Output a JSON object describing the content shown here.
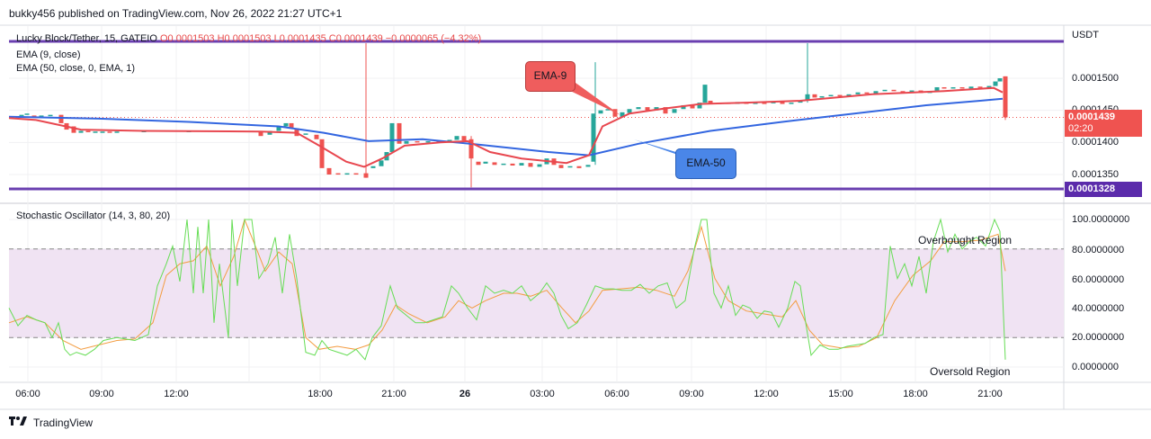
{
  "header": {
    "published": "bukky456 published on TradingView.com, Nov 26, 2022 21:27 UTC+1",
    "symbol_line": "Lucky Block/Tether, 15, GATEIO",
    "ohlc": "O0.0001503  H0.0001503  L0.0001435  C0.0001439  −0.0000065 (−4.32%)",
    "indicator_1": "EMA (9, close)",
    "indicator_2": "EMA (50, close, 0, EMA, 1)",
    "oscillator": "Stochastic Oscillator (14, 3, 80, 20)"
  },
  "axis": {
    "currency": "USDT",
    "price_ticks": [
      "0.0001500",
      "0.0001450",
      "0.0001400",
      "0.0001350"
    ],
    "current_price": "0.0001439",
    "countdown": "02:20",
    "support_price": "0.0001328",
    "osc_ticks": [
      "100.0000000",
      "80.0000000",
      "60.0000000",
      "40.0000000",
      "20.0000000",
      "0.0000000"
    ],
    "time_ticks": [
      "06:00",
      "09:00",
      "12:00",
      "18:00",
      "21:00",
      "26",
      "03:00",
      "06:00",
      "09:00",
      "12:00",
      "15:00",
      "18:00",
      "21:00"
    ]
  },
  "annotations": {
    "ema9": "EMA-9",
    "ema50": "EMA-50",
    "overbought": "Overbought Region",
    "oversold": "Oversold Region"
  },
  "footer": {
    "brand": "TradingView",
    "logo": "tradingview-logo-icon"
  },
  "colors": {
    "ema9": "#e8474f",
    "ema50": "#3366e0",
    "bull": "#26a69a",
    "bear": "#ef5350",
    "level_line": "#6a3fb0",
    "k_line": "#66dd55",
    "d_line": "#f39c40",
    "band": "#f0e3f3",
    "ema9_callout": "#ef5d5d",
    "ema50_callout": "#4a86e8"
  },
  "chart_data": {
    "type": "candlestick",
    "price_range": [
      0.00013,
      0.000154
    ],
    "resistance": 0.0001553,
    "support": 0.0001328,
    "current": 0.0001439,
    "ema9": [
      [
        0,
        0.0001438
      ],
      [
        30,
        0.0001435
      ],
      [
        80,
        0.000142
      ],
      [
        150,
        0.0001418
      ],
      [
        280,
        0.0001417
      ],
      [
        320,
        0.0001415
      ],
      [
        345,
        0.0001395
      ],
      [
        375,
        0.000137
      ],
      [
        395,
        0.0001362
      ],
      [
        415,
        0.0001375
      ],
      [
        440,
        0.0001395
      ],
      [
        480,
        0.00014
      ],
      [
        510,
        0.0001402
      ],
      [
        535,
        0.0001385
      ],
      [
        570,
        0.0001375
      ],
      [
        620,
        0.0001368
      ],
      [
        645,
        0.000138
      ],
      [
        660,
        0.0001425
      ],
      [
        690,
        0.0001445
      ],
      [
        730,
        0.0001453
      ],
      [
        770,
        0.000146
      ],
      [
        820,
        0.0001462
      ],
      [
        880,
        0.0001465
      ],
      [
        960,
        0.0001475
      ],
      [
        1040,
        0.000148
      ],
      [
        1095,
        0.0001485
      ],
      [
        1105,
        0.0001478
      ]
    ],
    "ema50": [
      [
        0,
        0.000144
      ],
      [
        100,
        0.0001437
      ],
      [
        200,
        0.0001432
      ],
      [
        300,
        0.0001425
      ],
      [
        350,
        0.0001415
      ],
      [
        400,
        0.0001402
      ],
      [
        460,
        0.0001405
      ],
      [
        520,
        0.0001397
      ],
      [
        600,
        0.0001385
      ],
      [
        645,
        0.000138
      ],
      [
        700,
        0.0001398
      ],
      [
        780,
        0.0001418
      ],
      [
        860,
        0.0001432
      ],
      [
        940,
        0.0001445
      ],
      [
        1020,
        0.0001458
      ],
      [
        1080,
        0.0001465
      ],
      [
        1105,
        0.0001468
      ]
    ],
    "candles": [
      [
        14,
        0.0001442,
        0.0001443
      ],
      [
        20,
        0.0001443,
        0.0001445
      ],
      [
        28,
        0.0001442,
        0.000144
      ],
      [
        36,
        0.000144,
        0.0001442
      ],
      [
        46,
        0.0001442,
        0.0001443
      ],
      [
        58,
        0.0001443,
        0.000143
      ],
      [
        64,
        0.000143,
        0.000142
      ],
      [
        72,
        0.0001425,
        0.0001415
      ],
      [
        80,
        0.0001415,
        0.0001418
      ],
      [
        88,
        0.0001418,
        0.0001416
      ],
      [
        96,
        0.0001416,
        0.0001417
      ],
      [
        104,
        0.0001417,
        0.0001417
      ],
      [
        112,
        0.0001417,
        0.0001416
      ],
      [
        120,
        0.0001416,
        0.0001417
      ],
      [
        150,
        0.0001418,
        0.0001418
      ],
      [
        200,
        0.0001418,
        0.0001418
      ],
      [
        250,
        0.0001418,
        0.0001418
      ],
      [
        280,
        0.0001418,
        0.000141
      ],
      [
        290,
        0.0001412,
        0.0001418
      ],
      [
        300,
        0.0001418,
        0.0001425
      ],
      [
        308,
        0.0001425,
        0.000143
      ],
      [
        314,
        0.000143,
        0.0001422
      ],
      [
        320,
        0.0001422,
        0.000141
      ],
      [
        330,
        0.0001412,
        0.0001414
      ],
      [
        342,
        0.0001412,
        0.0001405
      ],
      [
        348,
        0.0001405,
        0.000136
      ],
      [
        356,
        0.000136,
        0.000135
      ],
      [
        366,
        0.0001352,
        0.000135
      ],
      [
        376,
        0.000135,
        0.0001352
      ],
      [
        386,
        0.0001352,
        0.0001351
      ],
      [
        397,
        0.0001352,
        0.0001345
      ],
      [
        405,
        0.000136,
        0.0001363
      ],
      [
        414,
        0.0001363,
        0.0001372
      ],
      [
        420,
        0.0001372,
        0.0001385
      ],
      [
        426,
        0.0001385,
        0.000143
      ],
      [
        434,
        0.000143,
        0.0001398
      ],
      [
        442,
        0.0001398,
        0.0001402
      ],
      [
        454,
        0.0001402,
        0.00014
      ],
      [
        466,
        0.00014,
        0.0001402
      ],
      [
        478,
        0.0001402,
        0.0001401
      ],
      [
        490,
        0.0001401,
        0.0001404
      ],
      [
        498,
        0.0001404,
        0.000141
      ],
      [
        506,
        0.000141,
        0.0001403
      ],
      [
        514,
        0.0001405,
        0.0001375
      ],
      [
        522,
        0.000137,
        0.0001365
      ],
      [
        530,
        0.0001367,
        0.000137
      ],
      [
        540,
        0.0001369,
        0.0001365
      ],
      [
        550,
        0.0001365,
        0.0001367
      ],
      [
        560,
        0.0001367,
        0.0001364
      ],
      [
        570,
        0.0001364,
        0.0001368
      ],
      [
        580,
        0.0001368,
        0.0001362
      ],
      [
        590,
        0.0001362,
        0.0001366
      ],
      [
        598,
        0.0001366,
        0.0001375
      ],
      [
        606,
        0.0001375,
        0.0001365
      ],
      [
        614,
        0.0001365,
        0.000136
      ],
      [
        624,
        0.0001361,
        0.0001363
      ],
      [
        634,
        0.0001363,
        0.000136
      ],
      [
        644,
        0.0001362,
        0.0001365
      ],
      [
        650,
        0.000137,
        0.0001445
      ],
      [
        658,
        0.0001445,
        0.000145
      ],
      [
        666,
        0.000145,
        0.0001452
      ],
      [
        674,
        0.0001452,
        0.000144
      ],
      [
        682,
        0.000144,
        0.0001447
      ],
      [
        690,
        0.0001446,
        0.0001452
      ],
      [
        700,
        0.0001452,
        0.0001455
      ],
      [
        710,
        0.0001455,
        0.000145
      ],
      [
        720,
        0.000145,
        0.0001455
      ],
      [
        730,
        0.0001455,
        0.0001445
      ],
      [
        740,
        0.0001446,
        0.0001452
      ],
      [
        750,
        0.0001452,
        0.0001458
      ],
      [
        760,
        0.0001458,
        0.0001453
      ],
      [
        768,
        0.0001453,
        0.0001462
      ],
      [
        774,
        0.0001462,
        0.000149
      ],
      [
        780,
        0.0001465,
        0.000146
      ],
      [
        790,
        0.000146,
        0.0001462
      ],
      [
        800,
        0.0001462,
        0.000146
      ],
      [
        810,
        0.000146,
        0.0001463
      ],
      [
        820,
        0.0001463,
        0.000146
      ],
      [
        830,
        0.000146,
        0.0001462
      ],
      [
        840,
        0.0001462,
        0.0001461
      ],
      [
        850,
        0.0001461,
        0.0001463
      ],
      [
        860,
        0.0001463,
        0.000146
      ],
      [
        870,
        0.000146,
        0.0001462
      ],
      [
        880,
        0.0001462,
        0.0001465
      ],
      [
        888,
        0.0001465,
        0.0001475
      ],
      [
        896,
        0.0001475,
        0.000147
      ],
      [
        904,
        0.000147,
        0.0001472
      ],
      [
        914,
        0.0001472,
        0.0001474
      ],
      [
        924,
        0.0001474,
        0.0001472
      ],
      [
        934,
        0.0001472,
        0.0001475
      ],
      [
        944,
        0.0001475,
        0.0001478
      ],
      [
        954,
        0.0001478,
        0.0001476
      ],
      [
        964,
        0.0001476,
        0.000148
      ],
      [
        974,
        0.000148,
        0.0001482
      ],
      [
        984,
        0.0001482,
        0.000148
      ],
      [
        994,
        0.000148,
        0.0001478
      ],
      [
        1004,
        0.0001478,
        0.0001481
      ],
      [
        1014,
        0.0001481,
        0.0001477
      ],
      [
        1024,
        0.0001477,
        0.000148
      ],
      [
        1032,
        0.000148,
        0.0001486
      ],
      [
        1040,
        0.0001486,
        0.0001484
      ],
      [
        1050,
        0.0001484,
        0.0001486
      ],
      [
        1060,
        0.0001486,
        0.0001484
      ],
      [
        1070,
        0.0001484,
        0.0001487
      ],
      [
        1080,
        0.0001487,
        0.0001485
      ],
      [
        1090,
        0.0001485,
        0.0001488
      ],
      [
        1097,
        0.0001488,
        0.0001495
      ],
      [
        1102,
        0.0001495,
        0.00015
      ],
      [
        1108,
        0.0001503,
        0.0001439
      ]
    ],
    "wicks": [
      [
        397,
        0.0001563,
        0.0001345
      ],
      [
        514,
        0.000141,
        0.000133
      ],
      [
        652,
        0.0001525,
        0.0001365
      ],
      [
        888,
        0.0001555,
        0.0001462
      ],
      [
        1108,
        0.0001503,
        0.0001435
      ]
    ],
    "stoch_range": [
      0,
      100
    ],
    "overbought": 80,
    "oversold": 20,
    "stoch_k": [
      [
        0,
        40
      ],
      [
        10,
        28
      ],
      [
        20,
        35
      ],
      [
        30,
        32
      ],
      [
        40,
        30
      ],
      [
        48,
        20
      ],
      [
        55,
        30
      ],
      [
        62,
        12
      ],
      [
        68,
        8
      ],
      [
        75,
        10
      ],
      [
        85,
        8
      ],
      [
        95,
        12
      ],
      [
        105,
        18
      ],
      [
        120,
        20
      ],
      [
        140,
        18
      ],
      [
        155,
        22
      ],
      [
        165,
        55
      ],
      [
        175,
        70
      ],
      [
        182,
        82
      ],
      [
        190,
        58
      ],
      [
        198,
        100
      ],
      [
        205,
        50
      ],
      [
        210,
        95
      ],
      [
        216,
        50
      ],
      [
        222,
        100
      ],
      [
        228,
        30
      ],
      [
        234,
        70
      ],
      [
        240,
        40
      ],
      [
        244,
        20
      ],
      [
        248,
        100
      ],
      [
        254,
        55
      ],
      [
        262,
        100
      ],
      [
        270,
        100
      ],
      [
        278,
        60
      ],
      [
        288,
        70
      ],
      [
        296,
        88
      ],
      [
        304,
        50
      ],
      [
        312,
        90
      ],
      [
        320,
        60
      ],
      [
        330,
        10
      ],
      [
        340,
        8
      ],
      [
        348,
        18
      ],
      [
        356,
        12
      ],
      [
        366,
        10
      ],
      [
        376,
        8
      ],
      [
        386,
        12
      ],
      [
        396,
        5
      ],
      [
        404,
        20
      ],
      [
        414,
        28
      ],
      [
        424,
        55
      ],
      [
        432,
        40
      ],
      [
        442,
        35
      ],
      [
        452,
        30
      ],
      [
        462,
        30
      ],
      [
        472,
        32
      ],
      [
        482,
        34
      ],
      [
        492,
        55
      ],
      [
        500,
        50
      ],
      [
        510,
        40
      ],
      [
        520,
        32
      ],
      [
        530,
        55
      ],
      [
        540,
        50
      ],
      [
        550,
        52
      ],
      [
        560,
        50
      ],
      [
        570,
        55
      ],
      [
        580,
        45
      ],
      [
        590,
        50
      ],
      [
        598,
        57
      ],
      [
        606,
        50
      ],
      [
        614,
        35
      ],
      [
        622,
        26
      ],
      [
        632,
        30
      ],
      [
        642,
        42
      ],
      [
        652,
        55
      ],
      [
        662,
        53
      ],
      [
        672,
        53
      ],
      [
        682,
        52
      ],
      [
        692,
        52
      ],
      [
        702,
        56
      ],
      [
        712,
        50
      ],
      [
        722,
        55
      ],
      [
        732,
        57
      ],
      [
        742,
        40
      ],
      [
        752,
        45
      ],
      [
        762,
        80
      ],
      [
        770,
        100
      ],
      [
        776,
        100
      ],
      [
        784,
        50
      ],
      [
        792,
        40
      ],
      [
        800,
        55
      ],
      [
        808,
        35
      ],
      [
        816,
        42
      ],
      [
        824,
        40
      ],
      [
        832,
        33
      ],
      [
        840,
        38
      ],
      [
        848,
        37
      ],
      [
        856,
        27
      ],
      [
        866,
        40
      ],
      [
        874,
        58
      ],
      [
        880,
        55
      ],
      [
        886,
        30
      ],
      [
        892,
        8
      ],
      [
        902,
        15
      ],
      [
        912,
        12
      ],
      [
        922,
        12
      ],
      [
        932,
        14
      ],
      [
        942,
        15
      ],
      [
        952,
        16
      ],
      [
        962,
        20
      ],
      [
        972,
        22
      ],
      [
        980,
        82
      ],
      [
        988,
        60
      ],
      [
        996,
        70
      ],
      [
        1004,
        55
      ],
      [
        1012,
        75
      ],
      [
        1020,
        50
      ],
      [
        1028,
        85
      ],
      [
        1036,
        100
      ],
      [
        1044,
        78
      ],
      [
        1052,
        90
      ],
      [
        1060,
        80
      ],
      [
        1068,
        85
      ],
      [
        1076,
        88
      ],
      [
        1086,
        82
      ],
      [
        1096,
        100
      ],
      [
        1102,
        92
      ],
      [
        1108,
        5
      ]
    ],
    "stoch_d": [
      [
        0,
        30
      ],
      [
        20,
        34
      ],
      [
        40,
        30
      ],
      [
        60,
        18
      ],
      [
        80,
        12
      ],
      [
        100,
        15
      ],
      [
        120,
        18
      ],
      [
        140,
        19
      ],
      [
        160,
        30
      ],
      [
        175,
        62
      ],
      [
        190,
        70
      ],
      [
        205,
        72
      ],
      [
        220,
        82
      ],
      [
        235,
        55
      ],
      [
        250,
        75
      ],
      [
        262,
        100
      ],
      [
        272,
        85
      ],
      [
        285,
        65
      ],
      [
        300,
        78
      ],
      [
        315,
        70
      ],
      [
        330,
        20
      ],
      [
        345,
        12
      ],
      [
        365,
        14
      ],
      [
        385,
        12
      ],
      [
        400,
        15
      ],
      [
        415,
        25
      ],
      [
        430,
        42
      ],
      [
        445,
        36
      ],
      [
        465,
        30
      ],
      [
        485,
        34
      ],
      [
        500,
        45
      ],
      [
        515,
        40
      ],
      [
        530,
        45
      ],
      [
        550,
        50
      ],
      [
        565,
        50
      ],
      [
        580,
        48
      ],
      [
        598,
        52
      ],
      [
        615,
        40
      ],
      [
        630,
        30
      ],
      [
        645,
        38
      ],
      [
        660,
        52
      ],
      [
        680,
        53
      ],
      [
        700,
        54
      ],
      [
        720,
        52
      ],
      [
        740,
        48
      ],
      [
        755,
        65
      ],
      [
        770,
        95
      ],
      [
        785,
        60
      ],
      [
        800,
        45
      ],
      [
        820,
        38
      ],
      [
        840,
        36
      ],
      [
        860,
        34
      ],
      [
        875,
        45
      ],
      [
        890,
        25
      ],
      [
        905,
        15
      ],
      [
        925,
        13
      ],
      [
        945,
        14
      ],
      [
        965,
        20
      ],
      [
        985,
        45
      ],
      [
        1005,
        62
      ],
      [
        1025,
        72
      ],
      [
        1040,
        85
      ],
      [
        1060,
        85
      ],
      [
        1080,
        86
      ],
      [
        1100,
        90
      ],
      [
        1108,
        65
      ]
    ]
  }
}
